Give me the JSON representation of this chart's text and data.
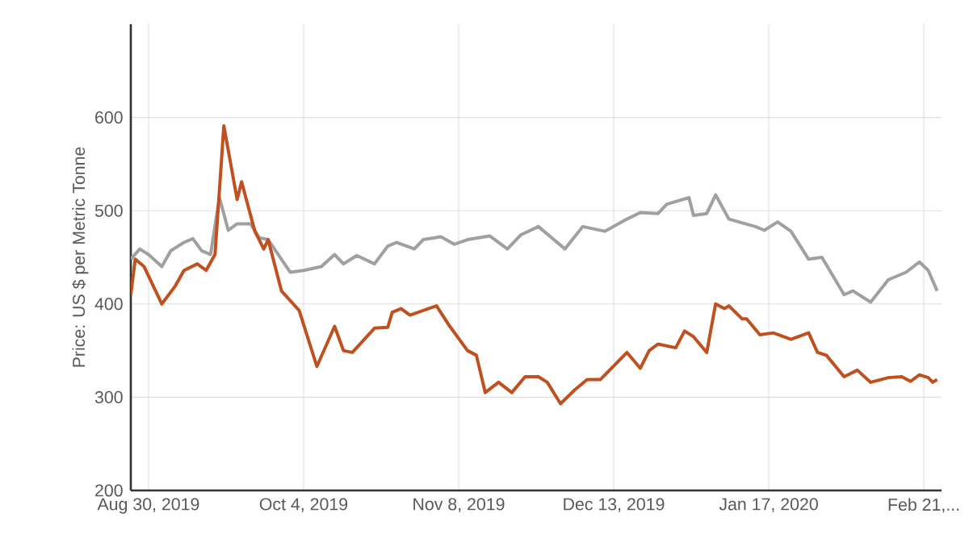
{
  "chart_data": {
    "type": "line",
    "ylabel": "Price: US $ per Metric Tonne",
    "grid": true,
    "xlim": [
      "2019-08-26",
      "2020-02-25"
    ],
    "ylim": [
      200,
      700
    ],
    "xticks": [
      {
        "value": "2019-08-30",
        "label": "Aug 30, 2019"
      },
      {
        "value": "2019-10-04",
        "label": "Oct 4, 2019"
      },
      {
        "value": "2019-11-08",
        "label": "Nov 8, 2019"
      },
      {
        "value": "2019-12-13",
        "label": "Dec 13, 2019"
      },
      {
        "value": "2020-01-17",
        "label": "Jan 17, 2020"
      },
      {
        "value": "2020-02-21",
        "label": "Feb 21,..."
      }
    ],
    "yticks": [
      200,
      300,
      400,
      500,
      600
    ],
    "series": [
      {
        "color": "#a0a0a0",
        "x": [
          "2019-08-26",
          "2019-08-28",
          "2019-08-30",
          "2019-09-02",
          "2019-09-04",
          "2019-09-07",
          "2019-09-09",
          "2019-09-11",
          "2019-09-13",
          "2019-09-15",
          "2019-09-17",
          "2019-09-19",
          "2019-09-22",
          "2019-09-24",
          "2019-09-26",
          "2019-10-01",
          "2019-10-04",
          "2019-10-08",
          "2019-10-11",
          "2019-10-13",
          "2019-10-16",
          "2019-10-20",
          "2019-10-23",
          "2019-10-25",
          "2019-10-29",
          "2019-10-31",
          "2019-11-04",
          "2019-11-07",
          "2019-11-10",
          "2019-11-15",
          "2019-11-19",
          "2019-11-22",
          "2019-11-26",
          "2019-11-29",
          "2019-12-02",
          "2019-12-06",
          "2019-12-11",
          "2019-12-16",
          "2019-12-19",
          "2019-12-23",
          "2019-12-25",
          "2019-12-30",
          "2019-12-31",
          "2020-01-03",
          "2020-01-05",
          "2020-01-08",
          "2020-01-14",
          "2020-01-16",
          "2020-01-19",
          "2020-01-22",
          "2020-01-26",
          "2020-01-29",
          "2020-02-03",
          "2020-02-05",
          "2020-02-09",
          "2020-02-13",
          "2020-02-17",
          "2020-02-20",
          "2020-02-22",
          "2020-02-24"
        ],
        "values": [
          448,
          459,
          453,
          440,
          457,
          466,
          470,
          457,
          453,
          514,
          479,
          486,
          486,
          471,
          469,
          434,
          436,
          440,
          453,
          443,
          452,
          443,
          462,
          466,
          459,
          469,
          472,
          464,
          469,
          473,
          459,
          474,
          483,
          471,
          459,
          483,
          478,
          491,
          498,
          497,
          507,
          514,
          495,
          497,
          517,
          491,
          483,
          479,
          488,
          478,
          448,
          450,
          410,
          414,
          402,
          426,
          434,
          445,
          436,
          414
        ]
      },
      {
        "color": "#c0501f",
        "x": [
          "2019-08-26",
          "2019-08-27",
          "2019-08-29",
          "2019-09-02",
          "2019-09-05",
          "2019-09-07",
          "2019-09-10",
          "2019-09-12",
          "2019-09-14",
          "2019-09-16",
          "2019-09-19",
          "2019-09-20",
          "2019-09-23",
          "2019-09-25",
          "2019-09-26",
          "2019-09-29",
          "2019-10-03",
          "2019-10-07",
          "2019-10-11",
          "2019-10-13",
          "2019-10-15",
          "2019-10-20",
          "2019-10-23",
          "2019-10-24",
          "2019-10-26",
          "2019-10-28",
          "2019-11-03",
          "2019-11-06",
          "2019-11-10",
          "2019-11-12",
          "2019-11-14",
          "2019-11-17",
          "2019-11-20",
          "2019-11-23",
          "2019-11-26",
          "2019-11-28",
          "2019-12-01",
          "2019-12-04",
          "2019-12-07",
          "2019-12-10",
          "2019-12-16",
          "2019-12-19",
          "2019-12-21",
          "2019-12-23",
          "2019-12-27",
          "2019-12-29",
          "2019-12-31",
          "2020-01-03",
          "2020-01-05",
          "2020-01-07",
          "2020-01-08",
          "2020-01-11",
          "2020-01-12",
          "2020-01-15",
          "2020-01-18",
          "2020-01-22",
          "2020-01-26",
          "2020-01-28",
          "2020-01-30",
          "2020-02-03",
          "2020-02-06",
          "2020-02-09",
          "2020-02-13",
          "2020-02-16",
          "2020-02-18",
          "2020-02-20",
          "2020-02-22",
          "2020-02-23",
          "2020-02-24"
        ],
        "values": [
          410,
          448,
          440,
          400,
          419,
          436,
          443,
          436,
          453,
          591,
          512,
          531,
          478,
          459,
          469,
          414,
          393,
          333,
          376,
          350,
          348,
          374,
          375,
          391,
          395,
          388,
          398,
          376,
          350,
          345,
          305,
          316,
          305,
          322,
          322,
          316,
          293,
          307,
          319,
          319,
          348,
          331,
          350,
          357,
          353,
          371,
          365,
          348,
          400,
          395,
          398,
          384,
          384,
          367,
          369,
          362,
          369,
          348,
          345,
          322,
          329,
          316,
          321,
          322,
          317,
          324,
          321,
          316,
          319
        ]
      }
    ]
  }
}
